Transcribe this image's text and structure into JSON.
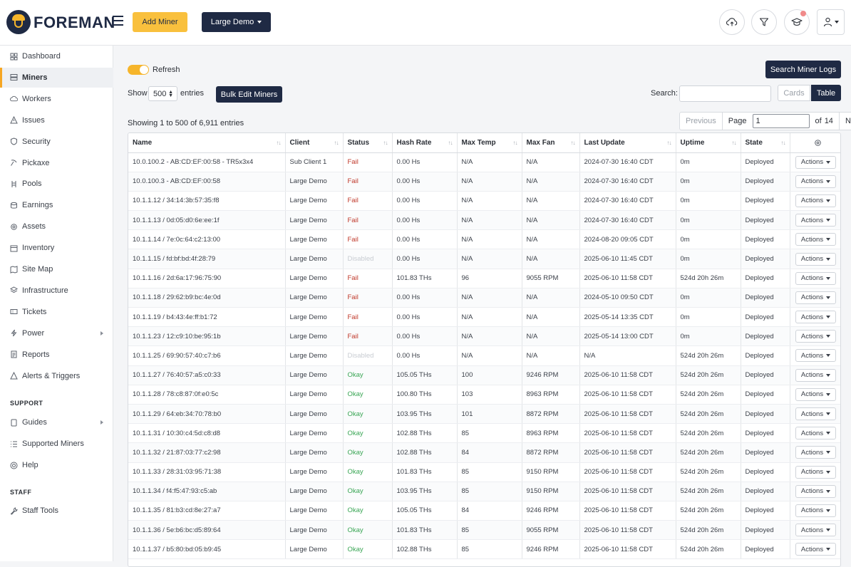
{
  "header": {
    "brand": "FOREMAN",
    "add_miner_label": "Add Miner",
    "demo_label": "Large Demo"
  },
  "sidebar": {
    "items": [
      {
        "label": "Dashboard",
        "icon": "dashboard-icon"
      },
      {
        "label": "Miners",
        "icon": "server-icon",
        "active": true
      },
      {
        "label": "Workers",
        "icon": "cloud-icon"
      },
      {
        "label": "Issues",
        "icon": "warning-icon"
      },
      {
        "label": "Security",
        "icon": "shield-icon"
      },
      {
        "label": "Pickaxe",
        "icon": "pickaxe-icon"
      },
      {
        "label": "Pools",
        "icon": "pools-icon"
      },
      {
        "label": "Earnings",
        "icon": "coins-icon"
      },
      {
        "label": "Assets",
        "icon": "gear-icon"
      },
      {
        "label": "Inventory",
        "icon": "box-icon"
      },
      {
        "label": "Site Map",
        "icon": "map-icon"
      },
      {
        "label": "Infrastructure",
        "icon": "layers-icon"
      },
      {
        "label": "Tickets",
        "icon": "ticket-icon"
      },
      {
        "label": "Power",
        "icon": "bolt-icon",
        "arrow": true
      },
      {
        "label": "Reports",
        "icon": "report-icon"
      },
      {
        "label": "Alerts & Triggers",
        "icon": "alert-icon"
      }
    ],
    "support_heading": "SUPPORT",
    "support_items": [
      {
        "label": "Guides",
        "icon": "book-icon",
        "arrow": true
      },
      {
        "label": "Supported Miners",
        "icon": "list-icon"
      },
      {
        "label": "Help",
        "icon": "help-icon"
      }
    ],
    "staff_heading": "STAFF",
    "staff_items": [
      {
        "label": "Staff Tools",
        "icon": "wrench-icon"
      }
    ]
  },
  "main": {
    "refresh_label": "Refresh",
    "search_logs_label": "Search Miner Logs",
    "show_label": "Show",
    "entries_value": "500",
    "entries_label": "entries",
    "bulk_edit_label": "Bulk Edit Miners",
    "search_label": "Search:",
    "search_value": "",
    "cards_label": "Cards",
    "table_label": "Table",
    "showing_text": "Showing 1 to 500 of 6,911 entries",
    "pager": {
      "previous": "Previous",
      "page_label": "Page",
      "page_value": "1",
      "of_label": "of",
      "total_pages": "14",
      "next": "Next"
    }
  },
  "table": {
    "columns": [
      "Name",
      "Client",
      "Status",
      "Hash Rate",
      "Max Temp",
      "Max Fan",
      "Last Update",
      "Uptime",
      "State"
    ],
    "actions_label": "Actions",
    "rows": [
      [
        "10.0.100.2 - AB:CD:EF:00:58 - TR5x3x4",
        "Sub Client 1",
        "Fail",
        "0.00 Hs",
        "N/A",
        "N/A",
        "2024-07-30 16:40 CDT",
        "0m",
        "Deployed"
      ],
      [
        "10.0.100.3 - AB:CD:EF:00:58",
        "Large Demo",
        "Fail",
        "0.00 Hs",
        "N/A",
        "N/A",
        "2024-07-30 16:40 CDT",
        "0m",
        "Deployed"
      ],
      [
        "10.1.1.12 / 34:14:3b:57:35:f8",
        "Large Demo",
        "Fail",
        "0.00 Hs",
        "N/A",
        "N/A",
        "2024-07-30 16:40 CDT",
        "0m",
        "Deployed"
      ],
      [
        "10.1.1.13 / 0d:05:d0:6e:ee:1f",
        "Large Demo",
        "Fail",
        "0.00 Hs",
        "N/A",
        "N/A",
        "2024-07-30 16:40 CDT",
        "0m",
        "Deployed"
      ],
      [
        "10.1.1.14 / 7e:0c:64:c2:13:00",
        "Large Demo",
        "Fail",
        "0.00 Hs",
        "N/A",
        "N/A",
        "2024-08-20 09:05 CDT",
        "0m",
        "Deployed"
      ],
      [
        "10.1.1.15 / fd:bf:bd:4f:28:79",
        "Large Demo",
        "Disabled",
        "0.00 Hs",
        "N/A",
        "N/A",
        "2025-06-10 11:45 CDT",
        "0m",
        "Deployed"
      ],
      [
        "10.1.1.16 / 2d:6a:17:96:75:90",
        "Large Demo",
        "Fail",
        "101.83 THs",
        "96",
        "9055 RPM",
        "2025-06-10 11:58 CDT",
        "524d 20h 26m",
        "Deployed"
      ],
      [
        "10.1.1.18 / 29:62:b9:bc:4e:0d",
        "Large Demo",
        "Fail",
        "0.00 Hs",
        "N/A",
        "N/A",
        "2024-05-10 09:50 CDT",
        "0m",
        "Deployed"
      ],
      [
        "10.1.1.19 / b4:43:4e:ff:b1:72",
        "Large Demo",
        "Fail",
        "0.00 Hs",
        "N/A",
        "N/A",
        "2025-05-14 13:35 CDT",
        "0m",
        "Deployed"
      ],
      [
        "10.1.1.23 / 12:c9:10:be:95:1b",
        "Large Demo",
        "Fail",
        "0.00 Hs",
        "N/A",
        "N/A",
        "2025-05-14 13:00 CDT",
        "0m",
        "Deployed"
      ],
      [
        "10.1.1.25 / 69:90:57:40:c7:b6",
        "Large Demo",
        "Disabled",
        "0.00 Hs",
        "N/A",
        "N/A",
        "N/A",
        "524d 20h 26m",
        "Deployed"
      ],
      [
        "10.1.1.27 / 76:40:57:a5:c0:33",
        "Large Demo",
        "Okay",
        "105.05 THs",
        "100",
        "9246 RPM",
        "2025-06-10 11:58 CDT",
        "524d 20h 26m",
        "Deployed"
      ],
      [
        "10.1.1.28 / 78:c8:87:0f:e0:5c",
        "Large Demo",
        "Okay",
        "100.80 THs",
        "103",
        "8963 RPM",
        "2025-06-10 11:58 CDT",
        "524d 20h 26m",
        "Deployed"
      ],
      [
        "10.1.1.29 / 64:eb:34:70:78:b0",
        "Large Demo",
        "Okay",
        "103.95 THs",
        "101",
        "8872 RPM",
        "2025-06-10 11:58 CDT",
        "524d 20h 26m",
        "Deployed"
      ],
      [
        "10.1.1.31 / 10:30:c4:5d:c8:d8",
        "Large Demo",
        "Okay",
        "102.88 THs",
        "85",
        "8963 RPM",
        "2025-06-10 11:58 CDT",
        "524d 20h 26m",
        "Deployed"
      ],
      [
        "10.1.1.32 / 21:87:03:77:c2:98",
        "Large Demo",
        "Okay",
        "102.88 THs",
        "84",
        "8872 RPM",
        "2025-06-10 11:58 CDT",
        "524d 20h 26m",
        "Deployed"
      ],
      [
        "10.1.1.33 / 28:31:03:95:71:38",
        "Large Demo",
        "Okay",
        "101.83 THs",
        "85",
        "9150 RPM",
        "2025-06-10 11:58 CDT",
        "524d 20h 26m",
        "Deployed"
      ],
      [
        "10.1.1.34 / f4:f5:47:93:c5:ab",
        "Large Demo",
        "Okay",
        "103.95 THs",
        "85",
        "9150 RPM",
        "2025-06-10 11:58 CDT",
        "524d 20h 26m",
        "Deployed"
      ],
      [
        "10.1.1.35 / 81:b3:cd:8e:27:a7",
        "Large Demo",
        "Okay",
        "105.05 THs",
        "84",
        "9246 RPM",
        "2025-06-10 11:58 CDT",
        "524d 20h 26m",
        "Deployed"
      ],
      [
        "10.1.1.36 / 5e:b6:bc:d5:89:64",
        "Large Demo",
        "Okay",
        "101.83 THs",
        "85",
        "9055 RPM",
        "2025-06-10 11:58 CDT",
        "524d 20h 26m",
        "Deployed"
      ],
      [
        "10.1.1.37 / b5:80:bd:05:b9:45",
        "Large Demo",
        "Okay",
        "102.88 THs",
        "85",
        "9246 RPM",
        "2025-06-10 11:58 CDT",
        "524d 20h 26m",
        "Deployed"
      ]
    ]
  },
  "colors": {
    "brand_navy": "#1f2a44",
    "accent_yellow": "#f9c03d",
    "status_fail": "#c0392b",
    "status_okay": "#3aa655",
    "status_disabled": "#c8ccd2"
  }
}
